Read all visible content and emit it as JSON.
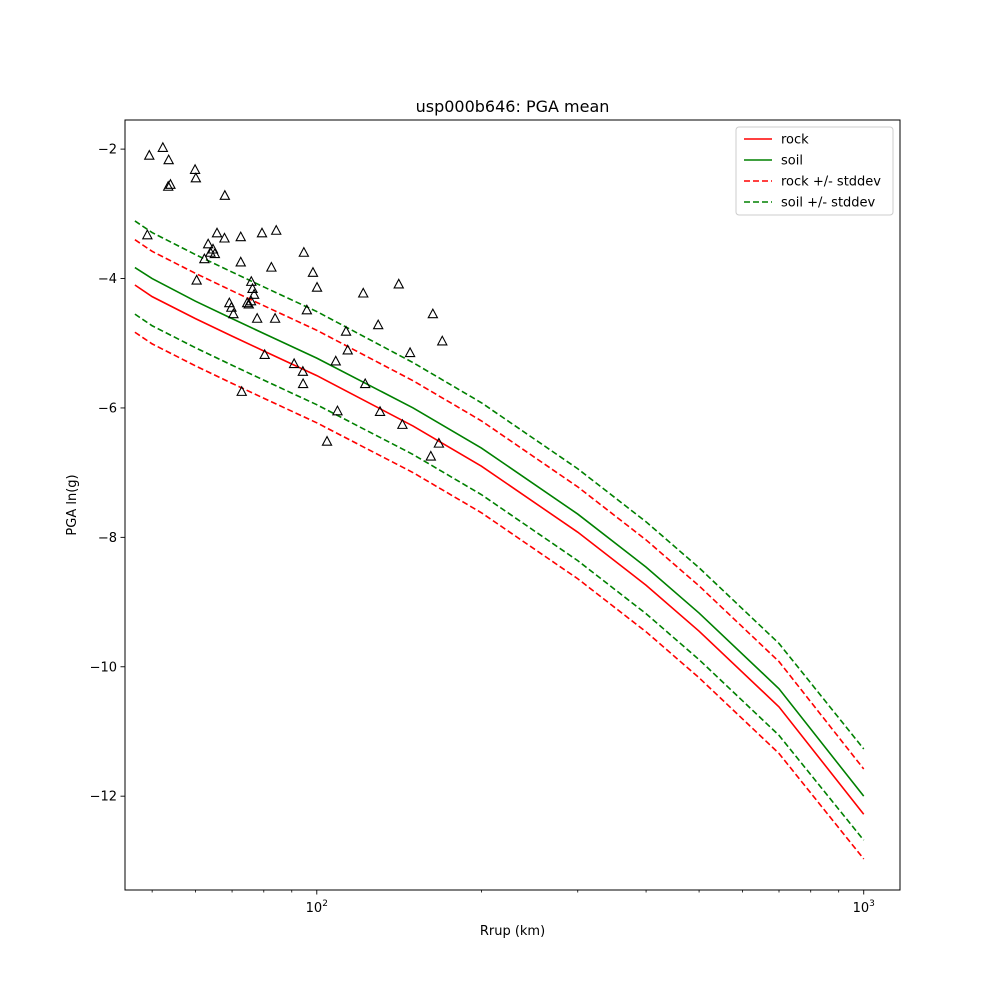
{
  "chart_data": {
    "type": "line",
    "title": "usp000b646: PGA mean",
    "xlabel": "Rrup (km)",
    "ylabel": "PGA ln(g)",
    "xscale": "log",
    "xlim": [
      44.6,
      1165
    ],
    "ylim": [
      -13.45,
      -1.55
    ],
    "x_ticks": [
      {
        "value": 100,
        "label": "10",
        "exp": "2"
      },
      {
        "value": 1000,
        "label": "10",
        "exp": "3"
      }
    ],
    "x_minor_ticks": [
      50,
      60,
      70,
      80,
      90,
      200,
      300,
      400,
      500,
      600,
      700,
      800,
      900
    ],
    "y_ticks": [
      {
        "value": -2,
        "label": "−2"
      },
      {
        "value": -4,
        "label": "−4"
      },
      {
        "value": -6,
        "label": "−6"
      },
      {
        "value": -8,
        "label": "−8"
      },
      {
        "value": -10,
        "label": "−10"
      },
      {
        "value": -12,
        "label": "−12"
      }
    ],
    "grid": false,
    "legend_position": "top-right",
    "series": [
      {
        "name": "rock",
        "color": "#ff0000",
        "dash": "solid",
        "x": [
          46.5,
          50,
          60,
          70,
          80,
          100,
          150,
          200,
          300,
          400,
          500,
          700,
          1000
        ],
        "y": [
          -4.1,
          -4.28,
          -4.62,
          -4.89,
          -5.12,
          -5.5,
          -6.28,
          -6.9,
          -7.92,
          -8.74,
          -9.45,
          -10.62,
          -12.28
        ]
      },
      {
        "name": "soil",
        "color": "#008000",
        "dash": "solid",
        "x": [
          46.5,
          50,
          60,
          70,
          80,
          100,
          150,
          200,
          300,
          400,
          500,
          700,
          1000
        ],
        "y": [
          -3.83,
          -4.0,
          -4.35,
          -4.62,
          -4.85,
          -5.23,
          -6.0,
          -6.62,
          -7.64,
          -8.46,
          -9.17,
          -10.34,
          -12.0
        ]
      },
      {
        "name": "rock +/- stddev",
        "color": "#ff0000",
        "dash": "dashed",
        "x": [
          46.5,
          50,
          60,
          70,
          80,
          100,
          150,
          200,
          300,
          400,
          500,
          700,
          1000
        ],
        "y": [
          -3.4,
          -3.58,
          -3.92,
          -4.19,
          -4.42,
          -4.8,
          -5.58,
          -6.2,
          -7.22,
          -8.04,
          -8.75,
          -9.92,
          -11.58
        ]
      },
      {
        "name": "",
        "color": "#ff0000",
        "dash": "dashed",
        "x": [
          46.5,
          50,
          60,
          70,
          80,
          100,
          150,
          200,
          300,
          400,
          500,
          700,
          1000
        ],
        "y": [
          -4.83,
          -5.01,
          -5.35,
          -5.62,
          -5.85,
          -6.23,
          -7.0,
          -7.62,
          -8.64,
          -9.46,
          -10.17,
          -11.34,
          -12.97
        ]
      },
      {
        "name": "soil +/- stddev",
        "color": "#008000",
        "dash": "dashed",
        "x": [
          46.5,
          50,
          60,
          70,
          80,
          100,
          150,
          200,
          300,
          400,
          500,
          700,
          1000
        ],
        "y": [
          -3.11,
          -3.29,
          -3.63,
          -3.9,
          -4.13,
          -4.51,
          -5.3,
          -5.92,
          -6.94,
          -7.76,
          -8.47,
          -9.64,
          -11.27
        ]
      },
      {
        "name": "",
        "color": "#008000",
        "dash": "dashed",
        "x": [
          46.5,
          50,
          60,
          70,
          80,
          100,
          150,
          200,
          300,
          400,
          500,
          700,
          1000
        ],
        "y": [
          -4.55,
          -4.73,
          -5.07,
          -5.34,
          -5.57,
          -5.95,
          -6.72,
          -7.34,
          -8.36,
          -9.18,
          -9.89,
          -11.06,
          -12.68
        ]
      }
    ],
    "observations": {
      "marker": "triangle",
      "x": [
        49.4,
        49.0,
        52.3,
        53.6,
        53.5,
        54.0,
        59.9,
        60.1,
        60.3,
        62.3,
        63.3,
        63.9,
        64.6,
        65.1,
        65.7,
        67.8,
        67.9,
        69.2,
        69.8,
        70.4,
        72.6,
        72.6,
        72.9,
        74.6,
        75.1,
        75.8,
        75.9,
        76.3,
        76.8,
        77.8,
        79.4,
        80.3,
        82.6,
        84.3,
        83.9,
        90.9,
        94.4,
        94.7,
        94.3,
        95.9,
        98.4,
        100.1,
        104.4,
        108.3,
        109.1,
        113.1,
        113.9,
        121.6,
        122.6,
        129.5,
        130.5,
        141.2,
        143.4,
        148.1,
        161.6,
        163.0,
        167.2,
        169.6
      ],
      "y": [
        -2.1,
        -3.33,
        -1.98,
        -2.17,
        -2.58,
        -2.55,
        -2.32,
        -2.45,
        -4.03,
        -3.7,
        -3.47,
        -3.6,
        -3.55,
        -3.62,
        -3.3,
        -3.38,
        -2.72,
        -4.38,
        -4.45,
        -4.55,
        -3.36,
        -3.75,
        -5.75,
        -4.38,
        -4.4,
        -4.35,
        -4.05,
        -4.16,
        -4.25,
        -4.62,
        -3.3,
        -5.18,
        -3.83,
        -3.26,
        -4.62,
        -5.32,
        -5.63,
        -3.6,
        -5.44,
        -4.49,
        -3.91,
        -4.14,
        -6.52,
        -5.28,
        -6.05,
        -4.82,
        -5.11,
        -4.23,
        -5.63,
        -4.72,
        -6.06,
        -4.09,
        -6.26,
        -5.15,
        -6.75,
        -4.55,
        -6.55,
        -4.97
      ]
    }
  }
}
